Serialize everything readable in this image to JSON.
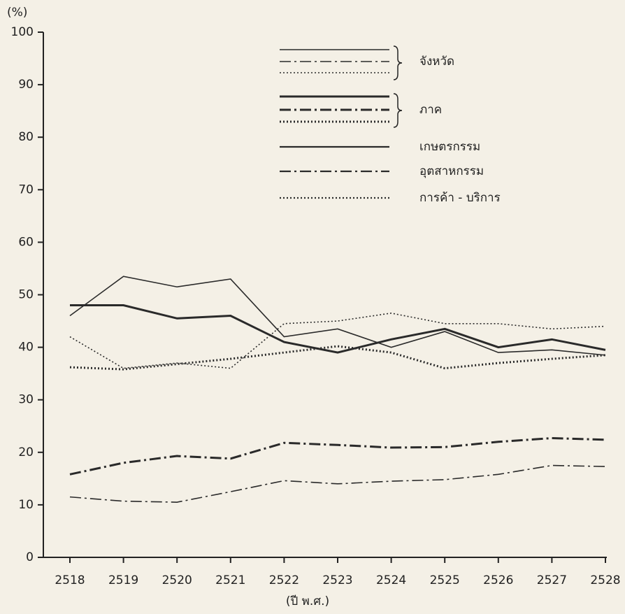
{
  "chart_data": {
    "type": "line",
    "y_label": "(%)",
    "x_label": "(ปี พ.ศ.)",
    "x": [
      2518,
      2519,
      2520,
      2521,
      2522,
      2523,
      2524,
      2525,
      2526,
      2527,
      2528
    ],
    "xlim": [
      2518,
      2528
    ],
    "xticks": [
      2518,
      2519,
      2520,
      2521,
      2522,
      2523,
      2524,
      2525,
      2526,
      2527,
      2528
    ],
    "ylim": [
      0,
      100
    ],
    "yticks": [
      0,
      10,
      20,
      30,
      40,
      50,
      60,
      70,
      80,
      90,
      100
    ],
    "grid": false,
    "legend": {
      "groups": [
        "จังหวัด",
        "ภาค"
      ],
      "sectors": [
        "เกษตรกรรม",
        "อุตสาหกรรม",
        "การค้า - บริการ"
      ]
    },
    "series": [
      {
        "group": 0,
        "sector": 0,
        "style": "solid",
        "weight": "thin",
        "color": "#2a2a2a",
        "values": [
          46,
          53.5,
          51.5,
          53,
          42,
          43.5,
          40,
          43,
          39,
          39.5,
          38.5
        ]
      },
      {
        "group": 0,
        "sector": 1,
        "style": "dashdot",
        "weight": "thin",
        "color": "#2a2a2a",
        "values": [
          11.5,
          10.7,
          10.5,
          12.5,
          14.6,
          14,
          14.5,
          14.8,
          15.8,
          17.5,
          17.3
        ]
      },
      {
        "group": 0,
        "sector": 2,
        "style": "dotted",
        "weight": "thin",
        "color": "#2a2a2a",
        "values": [
          42,
          36,
          37,
          36,
          44.5,
          45,
          46.5,
          44.5,
          44.5,
          43.5,
          44
        ]
      },
      {
        "group": 1,
        "sector": 0,
        "style": "solid",
        "weight": "thick",
        "color": "#2a2a2a",
        "values": [
          48,
          48,
          45.5,
          46,
          41,
          39,
          41.5,
          43.5,
          40,
          41.5,
          39.5
        ]
      },
      {
        "group": 1,
        "sector": 1,
        "style": "dashdot",
        "weight": "thick",
        "color": "#2a2a2a",
        "values": [
          15.8,
          18,
          19.3,
          18.8,
          21.8,
          21.4,
          20.9,
          21,
          22,
          22.7,
          22.4
        ]
      },
      {
        "group": 1,
        "sector": 2,
        "style": "dotted",
        "weight": "thick",
        "color": "#2a2a2a",
        "values": [
          36.2,
          35.8,
          36.8,
          37.8,
          39,
          40.2,
          39,
          36,
          37,
          37.8,
          38.5
        ]
      }
    ]
  }
}
